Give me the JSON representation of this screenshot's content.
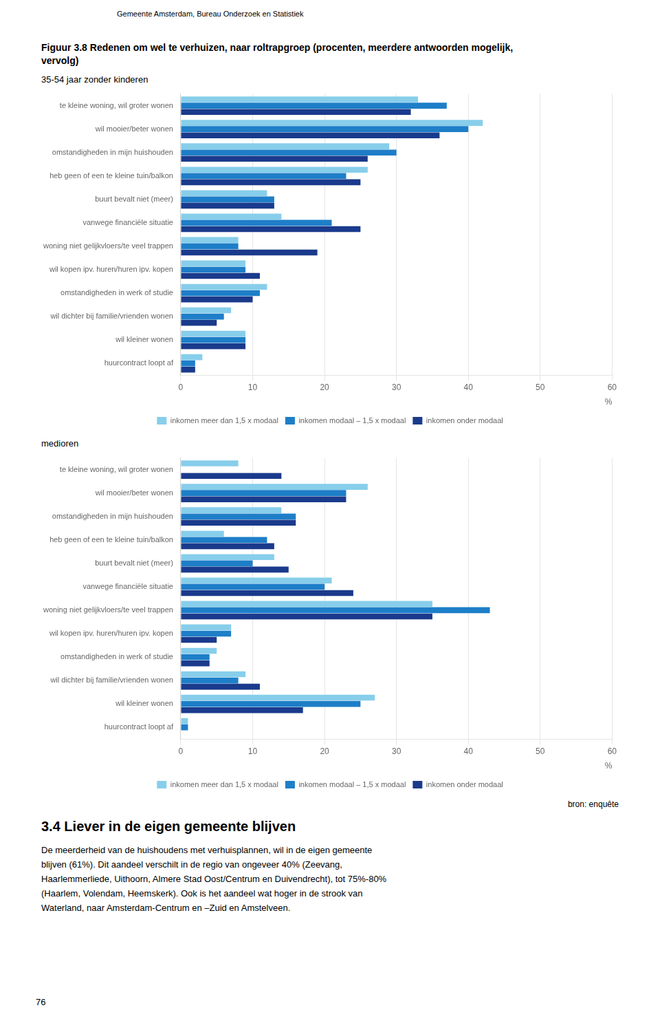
{
  "chart_data": [
    {
      "type": "bar",
      "orientation": "horizontal",
      "title": [
        "Figuur 3.8  Redenen om wel te verhuizen, naar roltrapgroep (procenten, meerdere antwoorden mogelijk,",
        "vervolg)"
      ],
      "subtitle": "35-54 jaar zonder kinderen",
      "annotations": [
        "Gemeente Amsterdam, Bureau Onderzoek en Statistiek"
      ],
      "categories": [
        "te kleine woning, wil groter wonen",
        "wil mooier/beter wonen",
        "omstandigheden in mijn huishouden",
        "heb geen of een te kleine tuin/balkon",
        "buurt bevalt niet (meer)",
        "vanwege financiële situatie",
        "woning niet gelijkvloers/te veel trappen",
        "wil kopen ipv. huren/huren ipv. kopen",
        "omstandigheden in werk of studie",
        "wil dichter bij familie/vrienden wonen",
        "wil kleiner wonen",
        "huurcontract loopt af"
      ],
      "series": [
        {
          "name": "inkomen meer dan 1,5 x modaal",
          "color": "#87CEEB",
          "values": [
            33,
            42,
            29,
            26,
            12,
            14,
            8,
            9,
            12,
            7,
            9,
            3
          ]
        },
        {
          "name": "inkomen modaal – 1,5 x modaal",
          "color": "#1E7EC8",
          "values": [
            37,
            40,
            30,
            23,
            13,
            21,
            8,
            9,
            11,
            6,
            9,
            2
          ]
        },
        {
          "name": "inkomen onder modaal",
          "color": "#1A3A8C",
          "values": [
            32,
            36,
            26,
            25,
            13,
            25,
            19,
            11,
            10,
            5,
            9,
            2
          ]
        }
      ],
      "xlabel": "%",
      "xlim": [
        0,
        60
      ],
      "xticks": [
        0,
        10,
        20,
        30,
        40,
        50,
        60
      ],
      "grid": true,
      "legend": "bottom"
    },
    {
      "type": "bar",
      "orientation": "horizontal",
      "subtitle": "medioren",
      "annotations": [
        "bron: enquête",
        "3.4  Liever in de eigen gemeente blijven",
        "De meerderheid van de huishoudens met verhuisplannen, wil in de eigen gemeente\nblijven (61%). Dit aandeel verschilt in de regio van ongeveer 40% (Zeevang,\nHaarlemmerliede, Uithoorn, Almere Stad Oost/Centrum en Duivendrecht), tot 75%-80%\n(Haarlem, Volendam, Heemskerk). Ook is het aandeel wat hoger in de strook van\nWaterland, naar Amsterdam-Centrum en –Zuid en Amstelveen.",
        "76"
      ],
      "categories": [
        "te kleine woning, wil groter wonen",
        "wil mooier/beter wonen",
        "omstandigheden in mijn huishouden",
        "heb geen of een te kleine tuin/balkon",
        "buurt bevalt niet (meer)",
        "vanwege financiële situatie",
        "woning niet gelijkvloers/te veel trappen",
        "wil kopen ipv. huren/huren ipv. kopen",
        "omstandigheden in werk of studie",
        "wil dichter bij familie/vrienden wonen",
        "wil kleiner wonen",
        "huurcontract loopt af"
      ],
      "series": [
        {
          "name": "inkomen meer dan 1,5 x modaal",
          "color": "#87CEEB",
          "values": [
            8,
            26,
            14,
            6,
            13,
            21,
            35,
            7,
            5,
            9,
            27,
            1
          ]
        },
        {
          "name": "inkomen modaal – 1,5 x modaal",
          "color": "#1E7EC8",
          "values": [
            0,
            23,
            16,
            12,
            10,
            20,
            43,
            7,
            4,
            8,
            25,
            1
          ]
        },
        {
          "name": "inkomen onder modaal",
          "color": "#1A3A8C",
          "values": [
            14,
            23,
            16,
            13,
            15,
            24,
            35,
            5,
            4,
            11,
            17,
            0
          ]
        }
      ],
      "xlabel": "%",
      "xlim": [
        0,
        60
      ],
      "xticks": [
        0,
        10,
        20,
        30,
        40,
        50,
        60
      ],
      "grid": true,
      "legend": "bottom"
    }
  ]
}
